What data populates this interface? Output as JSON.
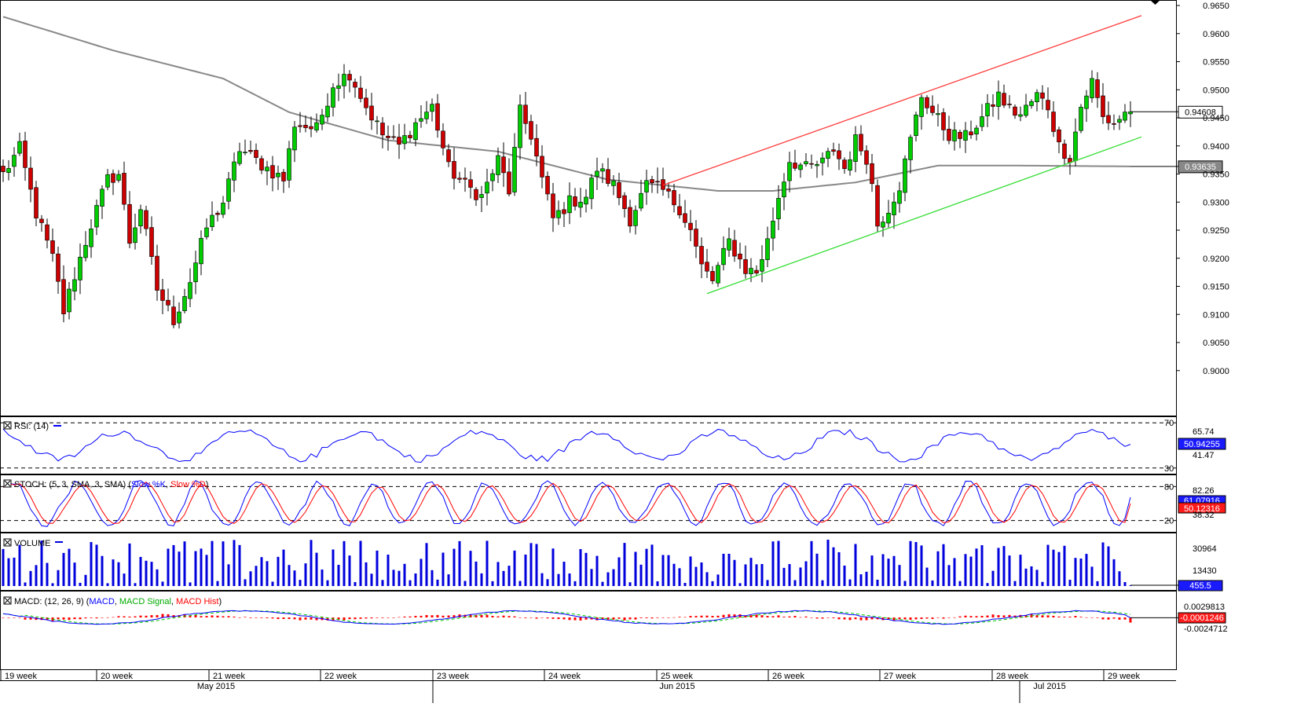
{
  "chart_data": {
    "type": "candlestick",
    "symbol_price_range": [
      0.895,
      0.965
    ],
    "price_ticks": [
      "0.9650",
      "0.9600",
      "0.9550",
      "0.9500",
      "0.9450",
      "0.9400",
      "0.9350",
      "0.9300",
      "0.9250",
      "0.9200",
      "0.9150",
      "0.9100",
      "0.9050",
      "0.9000"
    ],
    "last_price_label": "0.94608",
    "ma_price_label": "0.93635",
    "last_price": 0.94608,
    "ma_price": 0.93635,
    "week_labels": [
      "19 week",
      "20 week",
      "21 week",
      "22 week",
      "23 week",
      "24 week",
      "25 week",
      "26 week",
      "27 week",
      "28 week",
      "29 week"
    ],
    "month_labels": [
      "May 2015",
      "Jun 2015",
      "Jul 2015"
    ],
    "trend_lines": [
      {
        "name": "resistance",
        "color": "#ff3b3b",
        "from": {
          "bar": 120,
          "price": 0.933
        },
        "to": {
          "bar": 207,
          "price": 0.9632
        }
      },
      {
        "name": "support",
        "color": "#33dd33",
        "from": {
          "bar": 128,
          "price": 0.9137
        },
        "to": {
          "bar": 207,
          "price": 0.9416
        }
      }
    ],
    "candles_anchor_closes": [
      [
        0,
        0.935
      ],
      [
        3,
        0.9395
      ],
      [
        6,
        0.928
      ],
      [
        9,
        0.92
      ],
      [
        11,
        0.9105
      ],
      [
        13,
        0.917
      ],
      [
        16,
        0.926
      ],
      [
        19,
        0.934
      ],
      [
        21,
        0.935
      ],
      [
        23,
        0.923
      ],
      [
        25,
        0.929
      ],
      [
        28,
        0.9145
      ],
      [
        31,
        0.909
      ],
      [
        34,
        0.916
      ],
      [
        37,
        0.9255
      ],
      [
        40,
        0.93
      ],
      [
        43,
        0.9395
      ],
      [
        48,
        0.936
      ],
      [
        51,
        0.934
      ],
      [
        53,
        0.944
      ],
      [
        57,
        0.943
      ],
      [
        60,
        0.951
      ],
      [
        63,
        0.953
      ],
      [
        66,
        0.947
      ],
      [
        69,
        0.942
      ],
      [
        72,
        0.94
      ],
      [
        75,
        0.944
      ],
      [
        78,
        0.947
      ],
      [
        81,
        0.936
      ],
      [
        84,
        0.933
      ],
      [
        87,
        0.931
      ],
      [
        90,
        0.9375
      ],
      [
        92,
        0.932
      ],
      [
        94,
        0.946
      ],
      [
        96,
        0.942
      ],
      [
        98,
        0.934
      ],
      [
        100,
        0.927
      ],
      [
        103,
        0.93
      ],
      [
        106,
        0.931
      ],
      [
        108,
        0.936
      ],
      [
        111,
        0.933
      ],
      [
        114,
        0.927
      ],
      [
        117,
        0.933
      ],
      [
        120,
        0.932
      ],
      [
        123,
        0.929
      ],
      [
        125,
        0.925
      ],
      [
        127,
        0.9185
      ],
      [
        129,
        0.916
      ],
      [
        132,
        0.923
      ],
      [
        135,
        0.918
      ],
      [
        137,
        0.9175
      ],
      [
        139,
        0.923
      ],
      [
        141,
        0.931
      ],
      [
        143,
        0.9375
      ],
      [
        146,
        0.936
      ],
      [
        149,
        0.937
      ],
      [
        151,
        0.9395
      ],
      [
        153,
        0.936
      ],
      [
        155,
        0.941
      ],
      [
        157,
        0.938
      ],
      [
        158,
        0.933
      ],
      [
        159,
        0.926
      ],
      [
        161,
        0.929
      ],
      [
        163,
        0.933
      ],
      [
        165,
        0.941
      ],
      [
        167,
        0.949
      ],
      [
        169,
        0.946
      ],
      [
        172,
        0.942
      ],
      [
        175,
        0.9415
      ],
      [
        178,
        0.945
      ],
      [
        181,
        0.949
      ],
      [
        183,
        0.9465
      ],
      [
        185,
        0.9455
      ],
      [
        188,
        0.949
      ],
      [
        190,
        0.947
      ],
      [
        192,
        0.94
      ],
      [
        194,
        0.938
      ],
      [
        196,
        0.947
      ],
      [
        198,
        0.9515
      ],
      [
        200,
        0.945
      ],
      [
        202,
        0.944
      ],
      [
        204,
        0.9458
      ],
      [
        205,
        0.9461
      ]
    ],
    "ma_anchors": [
      [
        0,
        0.963
      ],
      [
        20,
        0.957
      ],
      [
        40,
        0.952
      ],
      [
        52,
        0.946
      ],
      [
        70,
        0.941
      ],
      [
        90,
        0.939
      ],
      [
        110,
        0.934
      ],
      [
        130,
        0.932
      ],
      [
        140,
        0.932
      ],
      [
        155,
        0.9335
      ],
      [
        170,
        0.9365
      ],
      [
        185,
        0.9365
      ],
      [
        205,
        0.93635
      ]
    ],
    "rsi": {
      "label": "RSI: (14)",
      "levels": [
        "70",
        "30"
      ],
      "value_labels": [
        "65.74",
        "50.94255",
        "41.47"
      ],
      "current": 50.94255
    },
    "stoch": {
      "label_prefix": "STOCH: (5, 3, SMA, 3, SMA)",
      "k_label": "Slow %K",
      "d_label": "Slow %D",
      "levels": [
        "80",
        "20"
      ],
      "value_labels": [
        "82.26",
        "61.07916",
        "50.12316",
        "38.32"
      ],
      "current_k": 61.07916,
      "current_d": 50.12316
    },
    "volume": {
      "label": "VOLUME",
      "value_labels": [
        "30964",
        "13430",
        "455.5"
      ],
      "current": 455.5,
      "max": 38000
    },
    "macd": {
      "label_prefix": "MACD: (12, 26, 9)",
      "macd_label": "MACD",
      "signal_label": "MACD Signal",
      "hist_label": "MACD Hist",
      "value_labels": [
        "0.0029813",
        "-0.0001246",
        "-0.0024712"
      ],
      "current": -0.0001246
    }
  },
  "colors": {
    "up": "#00cc00",
    "down": "#cc0000",
    "macd": "#0000ff",
    "signal": "#00cc00",
    "hist": "#ff0000",
    "volume": "#0000dd",
    "ma": "#888888",
    "rsi": "#0000ff",
    "stoch_k": "#0000ff",
    "stoch_d": "#ff0000"
  },
  "icons": {
    "panel_toggle": "square-x-icon",
    "scroll_marker": "diamond-icon"
  }
}
